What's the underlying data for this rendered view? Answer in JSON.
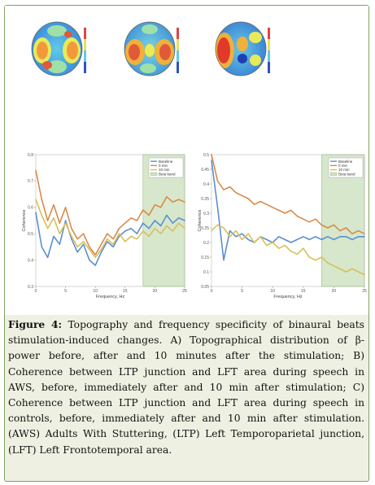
{
  "caption": {
    "figure_label": "Figure 4:",
    "text": "Topography and frequency specificity of binaural beats stimulation-induced changes. A) Topographical distribution of β-power before, after and 10 minutes after the stimulation; B) Coherence between LTP junction and LFT area during speech in AWS, before, immediately after and 10 min after stimulation; C) Coherence between LTP junction and LFT area during speech in controls, before, immediately after and 10 min after stimulation. (AWS) Adults With Stuttering, (LTP) Left Temporoparietal junction, (LFT) Left Frontotemporal area."
  },
  "topomaps": [
    {
      "name": "before"
    },
    {
      "name": "after"
    },
    {
      "name": "10 min after"
    }
  ],
  "colors": {
    "frame_border": "#7ea25d",
    "frame_bg": "#eef1e2",
    "baseline": "#5b8fd0",
    "zero_min": "#d98a4a",
    "ten_min": "#d8c05a",
    "beta_band": "#cfe3c4"
  },
  "chart_data": [
    {
      "type": "line",
      "xlabel": "Frequency, Hz",
      "ylabel": "Coherence",
      "xlim": [
        0,
        25
      ],
      "ylim": [
        0.3,
        0.8
      ],
      "x_ticks": [
        "0",
        "5",
        "10",
        "15",
        "20",
        "25"
      ],
      "y_ticks": [
        "0.3",
        "0.4",
        "0.5",
        "0.6",
        "0.7",
        "0.8"
      ],
      "shaded_band": {
        "from": 18,
        "to": 25,
        "label": "Beta band"
      },
      "legend": [
        "Baseline",
        "0 min",
        "10 min",
        "Beta band"
      ],
      "x": [
        0,
        1,
        2,
        3,
        4,
        5,
        6,
        7,
        8,
        9,
        10,
        11,
        12,
        13,
        14,
        15,
        16,
        17,
        18,
        19,
        20,
        21,
        22,
        23,
        24,
        25
      ],
      "series": [
        {
          "name": "Baseline",
          "values": [
            0.58,
            0.45,
            0.41,
            0.49,
            0.46,
            0.55,
            0.48,
            0.43,
            0.46,
            0.4,
            0.38,
            0.43,
            0.47,
            0.45,
            0.49,
            0.51,
            0.52,
            0.5,
            0.54,
            0.52,
            0.55,
            0.53,
            0.57,
            0.54,
            0.56,
            0.55
          ]
        },
        {
          "name": "0 min",
          "values": [
            0.74,
            0.63,
            0.55,
            0.61,
            0.54,
            0.6,
            0.52,
            0.48,
            0.5,
            0.45,
            0.42,
            0.46,
            0.5,
            0.48,
            0.52,
            0.54,
            0.56,
            0.55,
            0.59,
            0.57,
            0.61,
            0.6,
            0.64,
            0.62,
            0.63,
            0.62
          ]
        },
        {
          "name": "10 min",
          "values": [
            0.63,
            0.57,
            0.52,
            0.56,
            0.5,
            0.54,
            0.49,
            0.45,
            0.47,
            0.44,
            0.41,
            0.44,
            0.48,
            0.46,
            0.5,
            0.47,
            0.49,
            0.48,
            0.51,
            0.49,
            0.52,
            0.5,
            0.53,
            0.51,
            0.54,
            0.52
          ]
        }
      ]
    },
    {
      "type": "line",
      "xlabel": "Frequency, Hz",
      "ylabel": "Coherence",
      "xlim": [
        0,
        25
      ],
      "ylim": [
        0.05,
        0.5
      ],
      "x_ticks": [
        "0",
        "5",
        "10",
        "15",
        "20",
        "25"
      ],
      "y_ticks": [
        "0.05",
        "0.1",
        "0.15",
        "0.2",
        "0.25",
        "0.3",
        "0.35",
        "0.4",
        "0.45",
        "0.5"
      ],
      "shaded_band": {
        "from": 18,
        "to": 25,
        "label": "Beta band"
      },
      "legend": [
        "Baseline",
        "0 min",
        "10 min",
        "Beta band"
      ],
      "x": [
        0,
        1,
        2,
        3,
        4,
        5,
        6,
        7,
        8,
        9,
        10,
        11,
        12,
        13,
        14,
        15,
        16,
        17,
        18,
        19,
        20,
        21,
        22,
        23,
        24,
        25
      ],
      "series": [
        {
          "name": "Baseline",
          "values": [
            0.48,
            0.32,
            0.14,
            0.24,
            0.22,
            0.23,
            0.21,
            0.2,
            0.22,
            0.21,
            0.2,
            0.22,
            0.21,
            0.2,
            0.21,
            0.22,
            0.21,
            0.22,
            0.21,
            0.22,
            0.21,
            0.22,
            0.22,
            0.21,
            0.22,
            0.22
          ]
        },
        {
          "name": "0 min",
          "values": [
            0.5,
            0.41,
            0.38,
            0.39,
            0.37,
            0.36,
            0.35,
            0.33,
            0.34,
            0.33,
            0.32,
            0.31,
            0.3,
            0.31,
            0.29,
            0.28,
            0.27,
            0.28,
            0.26,
            0.25,
            0.26,
            0.24,
            0.25,
            0.23,
            0.24,
            0.23
          ]
        },
        {
          "name": "10 min",
          "values": [
            0.24,
            0.26,
            0.25,
            0.22,
            0.24,
            0.21,
            0.23,
            0.2,
            0.22,
            0.19,
            0.2,
            0.18,
            0.19,
            0.17,
            0.16,
            0.18,
            0.15,
            0.14,
            0.15,
            0.13,
            0.12,
            0.11,
            0.1,
            0.11,
            0.1,
            0.09
          ]
        }
      ]
    }
  ]
}
